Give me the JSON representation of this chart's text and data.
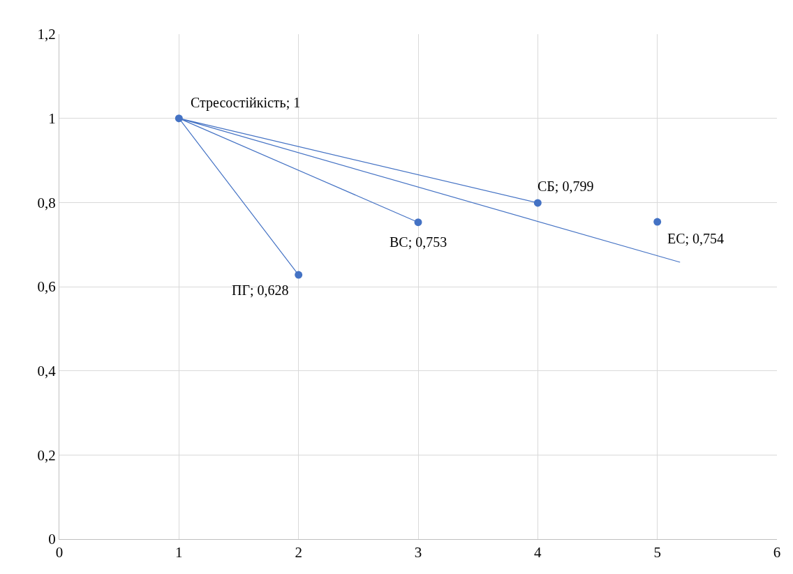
{
  "chart_data": {
    "type": "scatter",
    "xlim": [
      0,
      6
    ],
    "ylim": [
      0,
      1.2
    ],
    "xticks": [
      0,
      1,
      2,
      3,
      4,
      5,
      6
    ],
    "yticks": [
      0,
      {
        "value": 0.2,
        "label": "0,2"
      },
      {
        "value": 0.4,
        "label": "0,4"
      },
      {
        "value": 0.6,
        "label": "0,6"
      },
      {
        "value": 0.8,
        "label": "0,8"
      },
      1,
      {
        "value": 1.2,
        "label": "1,2"
      }
    ],
    "grid": true,
    "legend": false,
    "series": [
      {
        "type": "line",
        "color": "#4472c4",
        "marker": "none",
        "x": [
          2,
          1,
          3,
          1,
          4,
          1,
          5.19
        ],
        "values": [
          0.628,
          1,
          0.753,
          1,
          0.799,
          1,
          0.658
        ]
      },
      {
        "type": "scatter",
        "color": "#4472c4",
        "marker": "circle",
        "x": [
          1,
          2,
          3,
          4,
          5
        ],
        "values": [
          1,
          0.628,
          0.753,
          0.799,
          0.754
        ],
        "value_labels": [
          "Стресостійкість; 1",
          "ПГ; 0,628",
          "ВС; 0,753",
          "СБ; 0,799",
          "ЕС; 0,754"
        ]
      }
    ]
  }
}
